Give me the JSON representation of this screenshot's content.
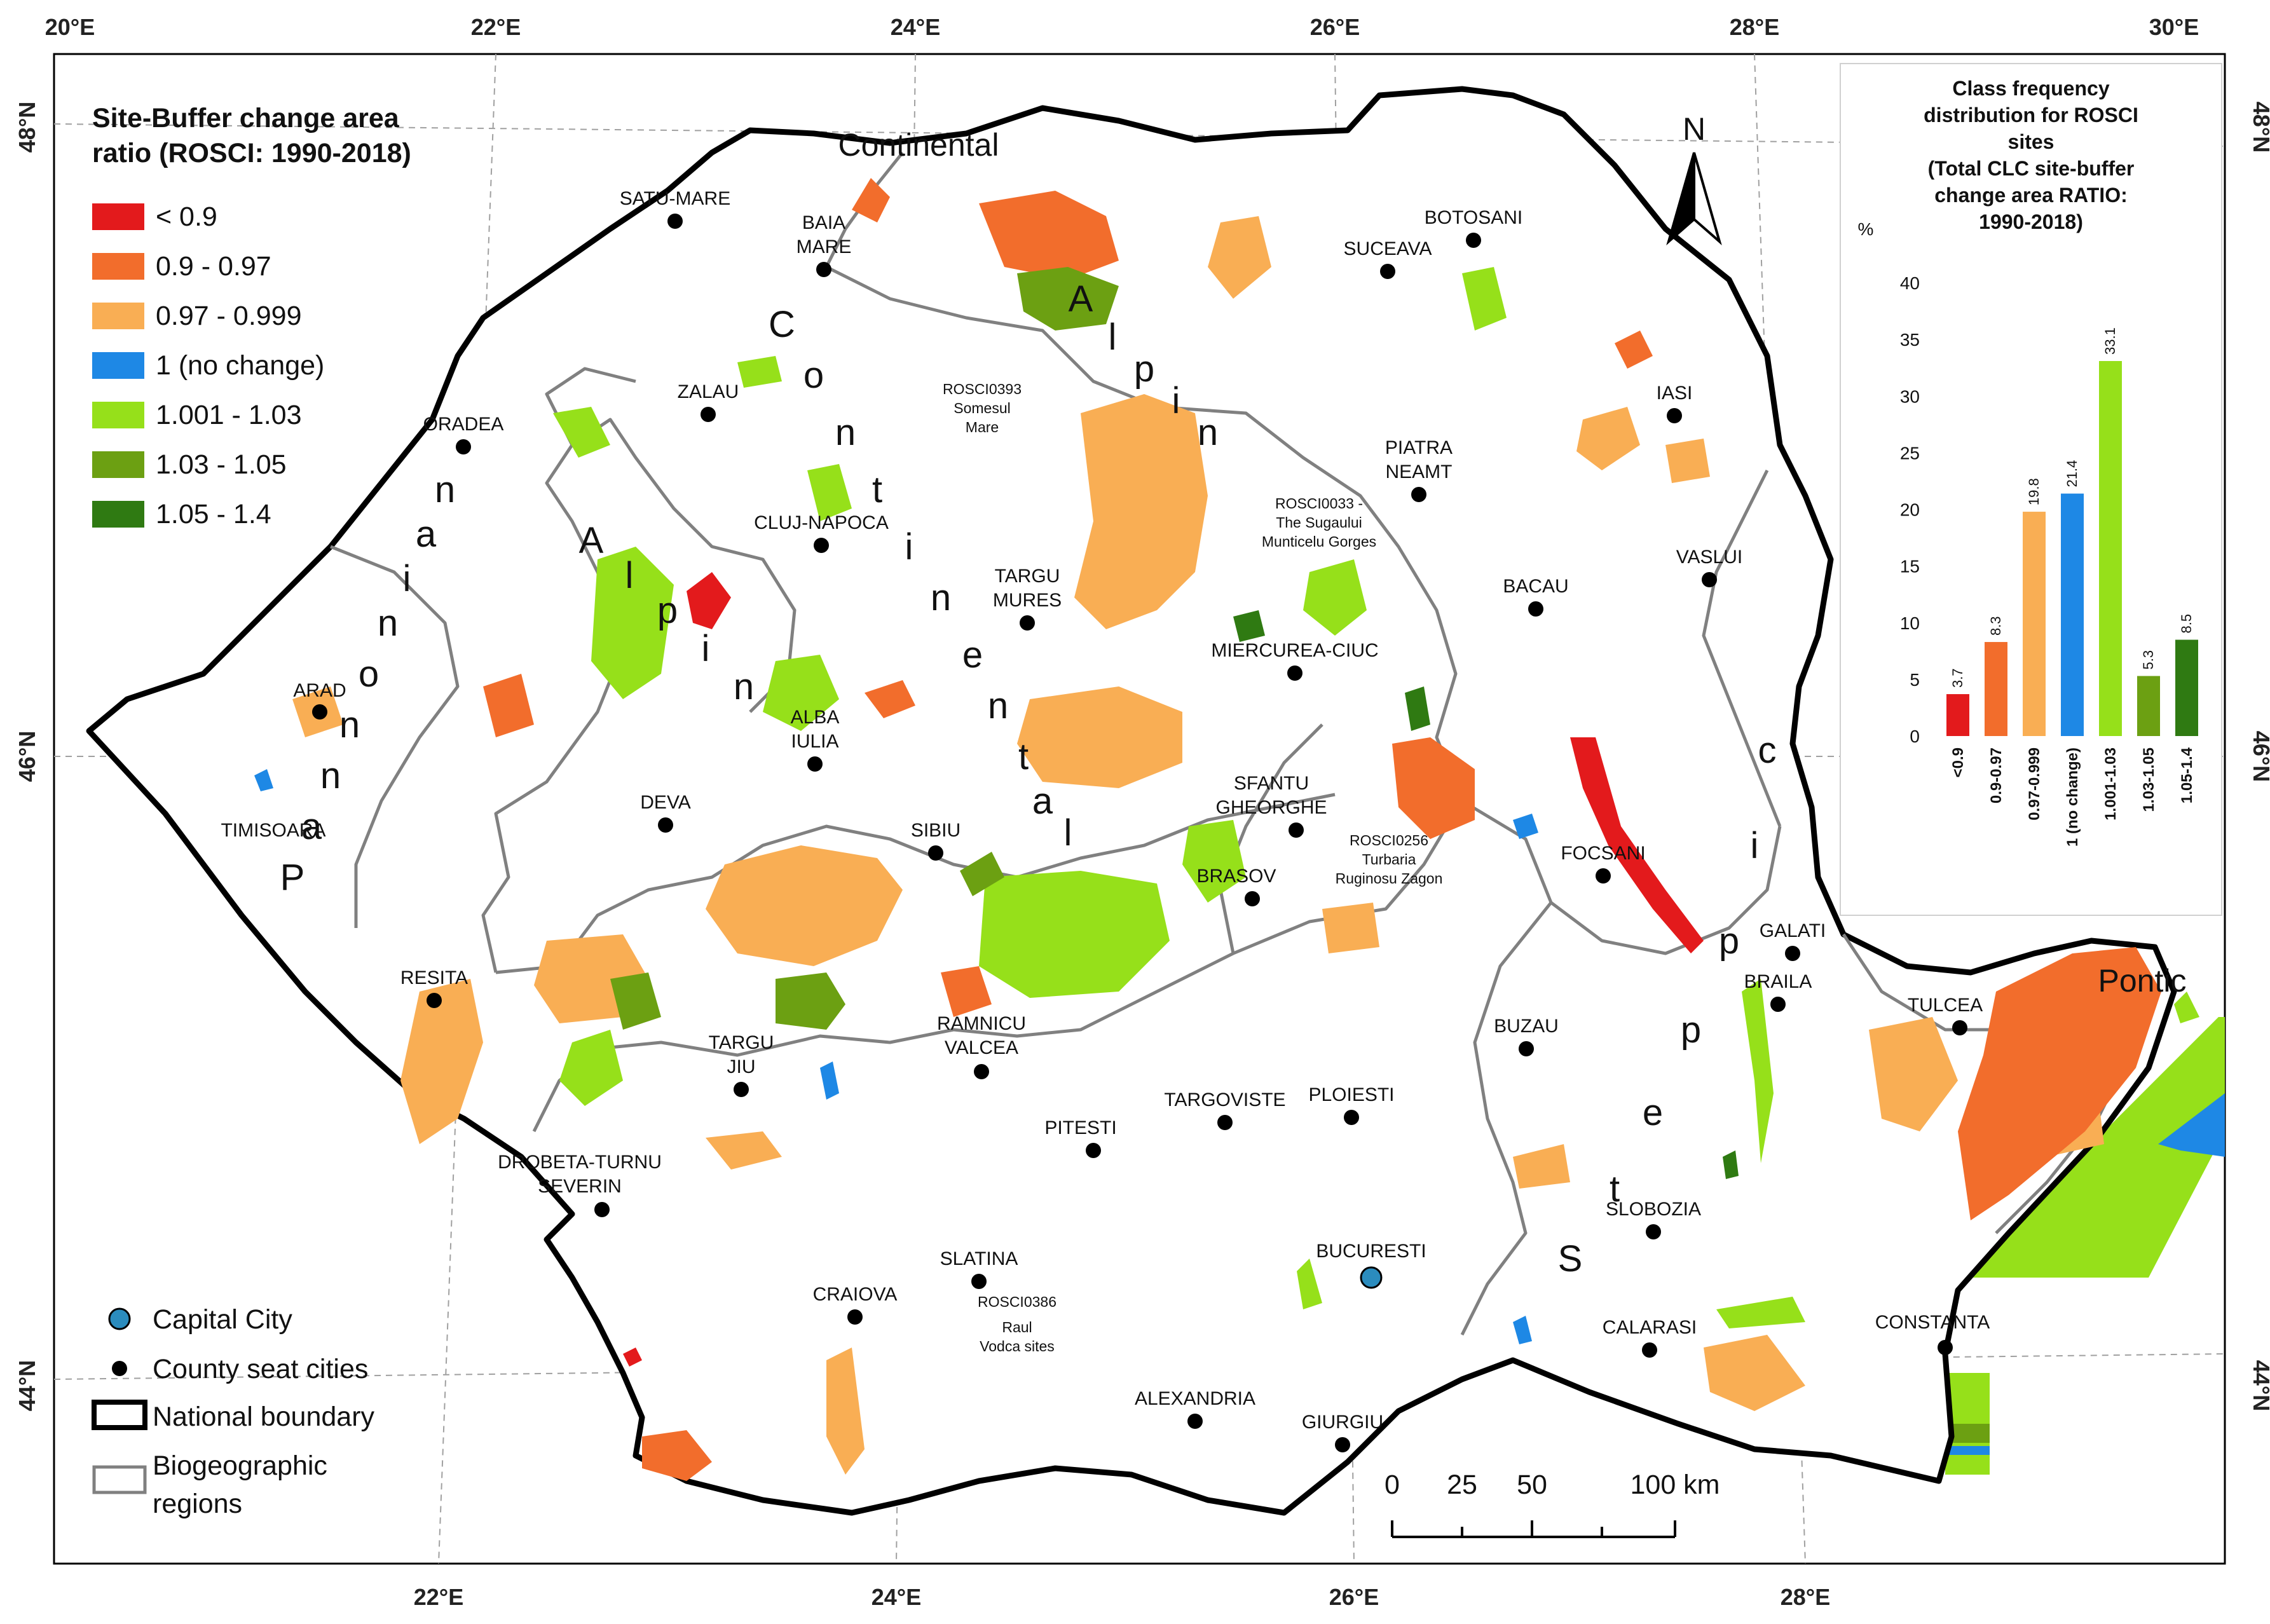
{
  "map": {
    "top_ticks": [
      "20°E",
      "22°E",
      "24°E",
      "26°E",
      "28°E",
      "30°E"
    ],
    "bottom_ticks": [
      "22°E",
      "24°E",
      "26°E",
      "28°E"
    ],
    "left_ticks": [
      "48°N",
      "46°N",
      "44°N"
    ],
    "right_ticks": [
      "48°N",
      "46°N",
      "44°N"
    ],
    "north_arrow": "N",
    "colors": {
      "boundary": "#000000",
      "biogeo": "#808080",
      "county_seat": "#000000",
      "capital": "#2b8cbe"
    }
  },
  "legend": {
    "title_line1": "Site-Buffer change area",
    "title_line2": "ratio (ROSCI: 1990-2018)",
    "classes": [
      {
        "label": "< 0.9",
        "color": "#e31a1c"
      },
      {
        "label": "0.9 - 0.97",
        "color": "#f26d2c"
      },
      {
        "label": "0.97 - 0.999",
        "color": "#f9ae54"
      },
      {
        "label": "1 (no change)",
        "color": "#1e88e5"
      },
      {
        "label": "1.001 - 1.03",
        "color": "#96e01a"
      },
      {
        "label": "1.03 - 1.05",
        "color": "#6ca012"
      },
      {
        "label": "1.05 - 1.4",
        "color": "#2f7a12"
      }
    ],
    "symbols": {
      "capital": "Capital City",
      "county": "County seat cities",
      "boundary": "National boundary",
      "biogeo_line1": "Biogeographic",
      "biogeo_line2": "regions"
    }
  },
  "regions": {
    "continental_top": "Continental",
    "continental_diag": [
      "C",
      "o",
      "n",
      "t",
      "i",
      "n",
      "e",
      "n",
      "t",
      "a",
      "l"
    ],
    "alpine_top": [
      "A",
      "l",
      "p",
      "i",
      "n"
    ],
    "alpine_left": [
      "A",
      "l",
      "p",
      "i",
      "n"
    ],
    "pannonian": [
      "P",
      "a",
      "n",
      "n",
      "o",
      "n",
      "i",
      "a",
      "n"
    ],
    "steppic": [
      "S",
      "t",
      "e",
      "p",
      "p",
      "i",
      "c"
    ],
    "pontic": "Pontic"
  },
  "cities": [
    {
      "name": "SATU-MARE"
    },
    {
      "name": "BAIA"
    },
    {
      "name": "MARE"
    },
    {
      "name": "BOTOSANI"
    },
    {
      "name": "SUCEAVA"
    },
    {
      "name": "ZALAU"
    },
    {
      "name": "ORADEA"
    },
    {
      "name": "IASI"
    },
    {
      "name": "PIATRA"
    },
    {
      "name": "NEAMT"
    },
    {
      "name": "CLUJ-NAPOCA"
    },
    {
      "name": "TARGU"
    },
    {
      "name": "MURES"
    },
    {
      "name": "VASLUI"
    },
    {
      "name": "BACAU"
    },
    {
      "name": "ARAD"
    },
    {
      "name": "MIERCUREA-CIUC"
    },
    {
      "name": "ALBA"
    },
    {
      "name": "IULIA"
    },
    {
      "name": "DEVA"
    },
    {
      "name": "SFANTU"
    },
    {
      "name": "GHEORGHE"
    },
    {
      "name": "TIMISOARA"
    },
    {
      "name": "SIBIU"
    },
    {
      "name": "BRASOV"
    },
    {
      "name": "FOCSANI"
    },
    {
      "name": "GALATI"
    },
    {
      "name": "RESITA"
    },
    {
      "name": "BRAILA"
    },
    {
      "name": "TULCEA"
    },
    {
      "name": "RAMNICU"
    },
    {
      "name": "VALCEA"
    },
    {
      "name": "TARGU"
    },
    {
      "name": "JIU"
    },
    {
      "name": "BUZAU"
    },
    {
      "name": "TARGOVISTE"
    },
    {
      "name": "PLOIESTI"
    },
    {
      "name": "PITESTI"
    },
    {
      "name": "DROBETA-TURNU"
    },
    {
      "name": "SEVERIN"
    },
    {
      "name": "SLOBOZIA"
    },
    {
      "name": "BUCURESTI"
    },
    {
      "name": "SLATINA"
    },
    {
      "name": "CRAIOVA"
    },
    {
      "name": "CALARASI"
    },
    {
      "name": "CONSTANTA"
    },
    {
      "name": "ALEXANDRIA"
    },
    {
      "name": "GIURGIU"
    }
  ],
  "site_labels": [
    [
      "ROSCI0393",
      "Somesul",
      "Mare"
    ],
    [
      "ROSCI0033 -",
      "The Sugaului",
      "Munticelu Gorges"
    ],
    [
      "ROSCI0256",
      "Turbaria",
      "Ruginosu Zagon"
    ],
    [
      "ROSCI0386",
      "Raul",
      "Vodca sites"
    ]
  ],
  "scalebar": {
    "labels": [
      "0",
      "25",
      "50",
      "100 km"
    ]
  },
  "chart_data": {
    "type": "bar",
    "title_lines": [
      "Class frequency",
      "distribution for ROSCI",
      "sites",
      "(Total CLC site-buffer",
      "change area RATIO:",
      "1990-2018)"
    ],
    "ylabel": "%",
    "ylim": [
      0,
      40
    ],
    "yticks": [
      0,
      5,
      10,
      15,
      20,
      25,
      30,
      35,
      40
    ],
    "categories": [
      "<0.9",
      "0.9-0.97",
      "0.97-0.999",
      "1 (no change)",
      "1.001-1.03",
      "1.03-1.05",
      "1.05-1.4"
    ],
    "values": [
      3.7,
      8.3,
      19.8,
      21.4,
      33.1,
      5.3,
      8.5
    ],
    "colors": [
      "#e31a1c",
      "#f26d2c",
      "#f9ae54",
      "#1e88e5",
      "#96e01a",
      "#6ca012",
      "#2f7a12"
    ]
  }
}
